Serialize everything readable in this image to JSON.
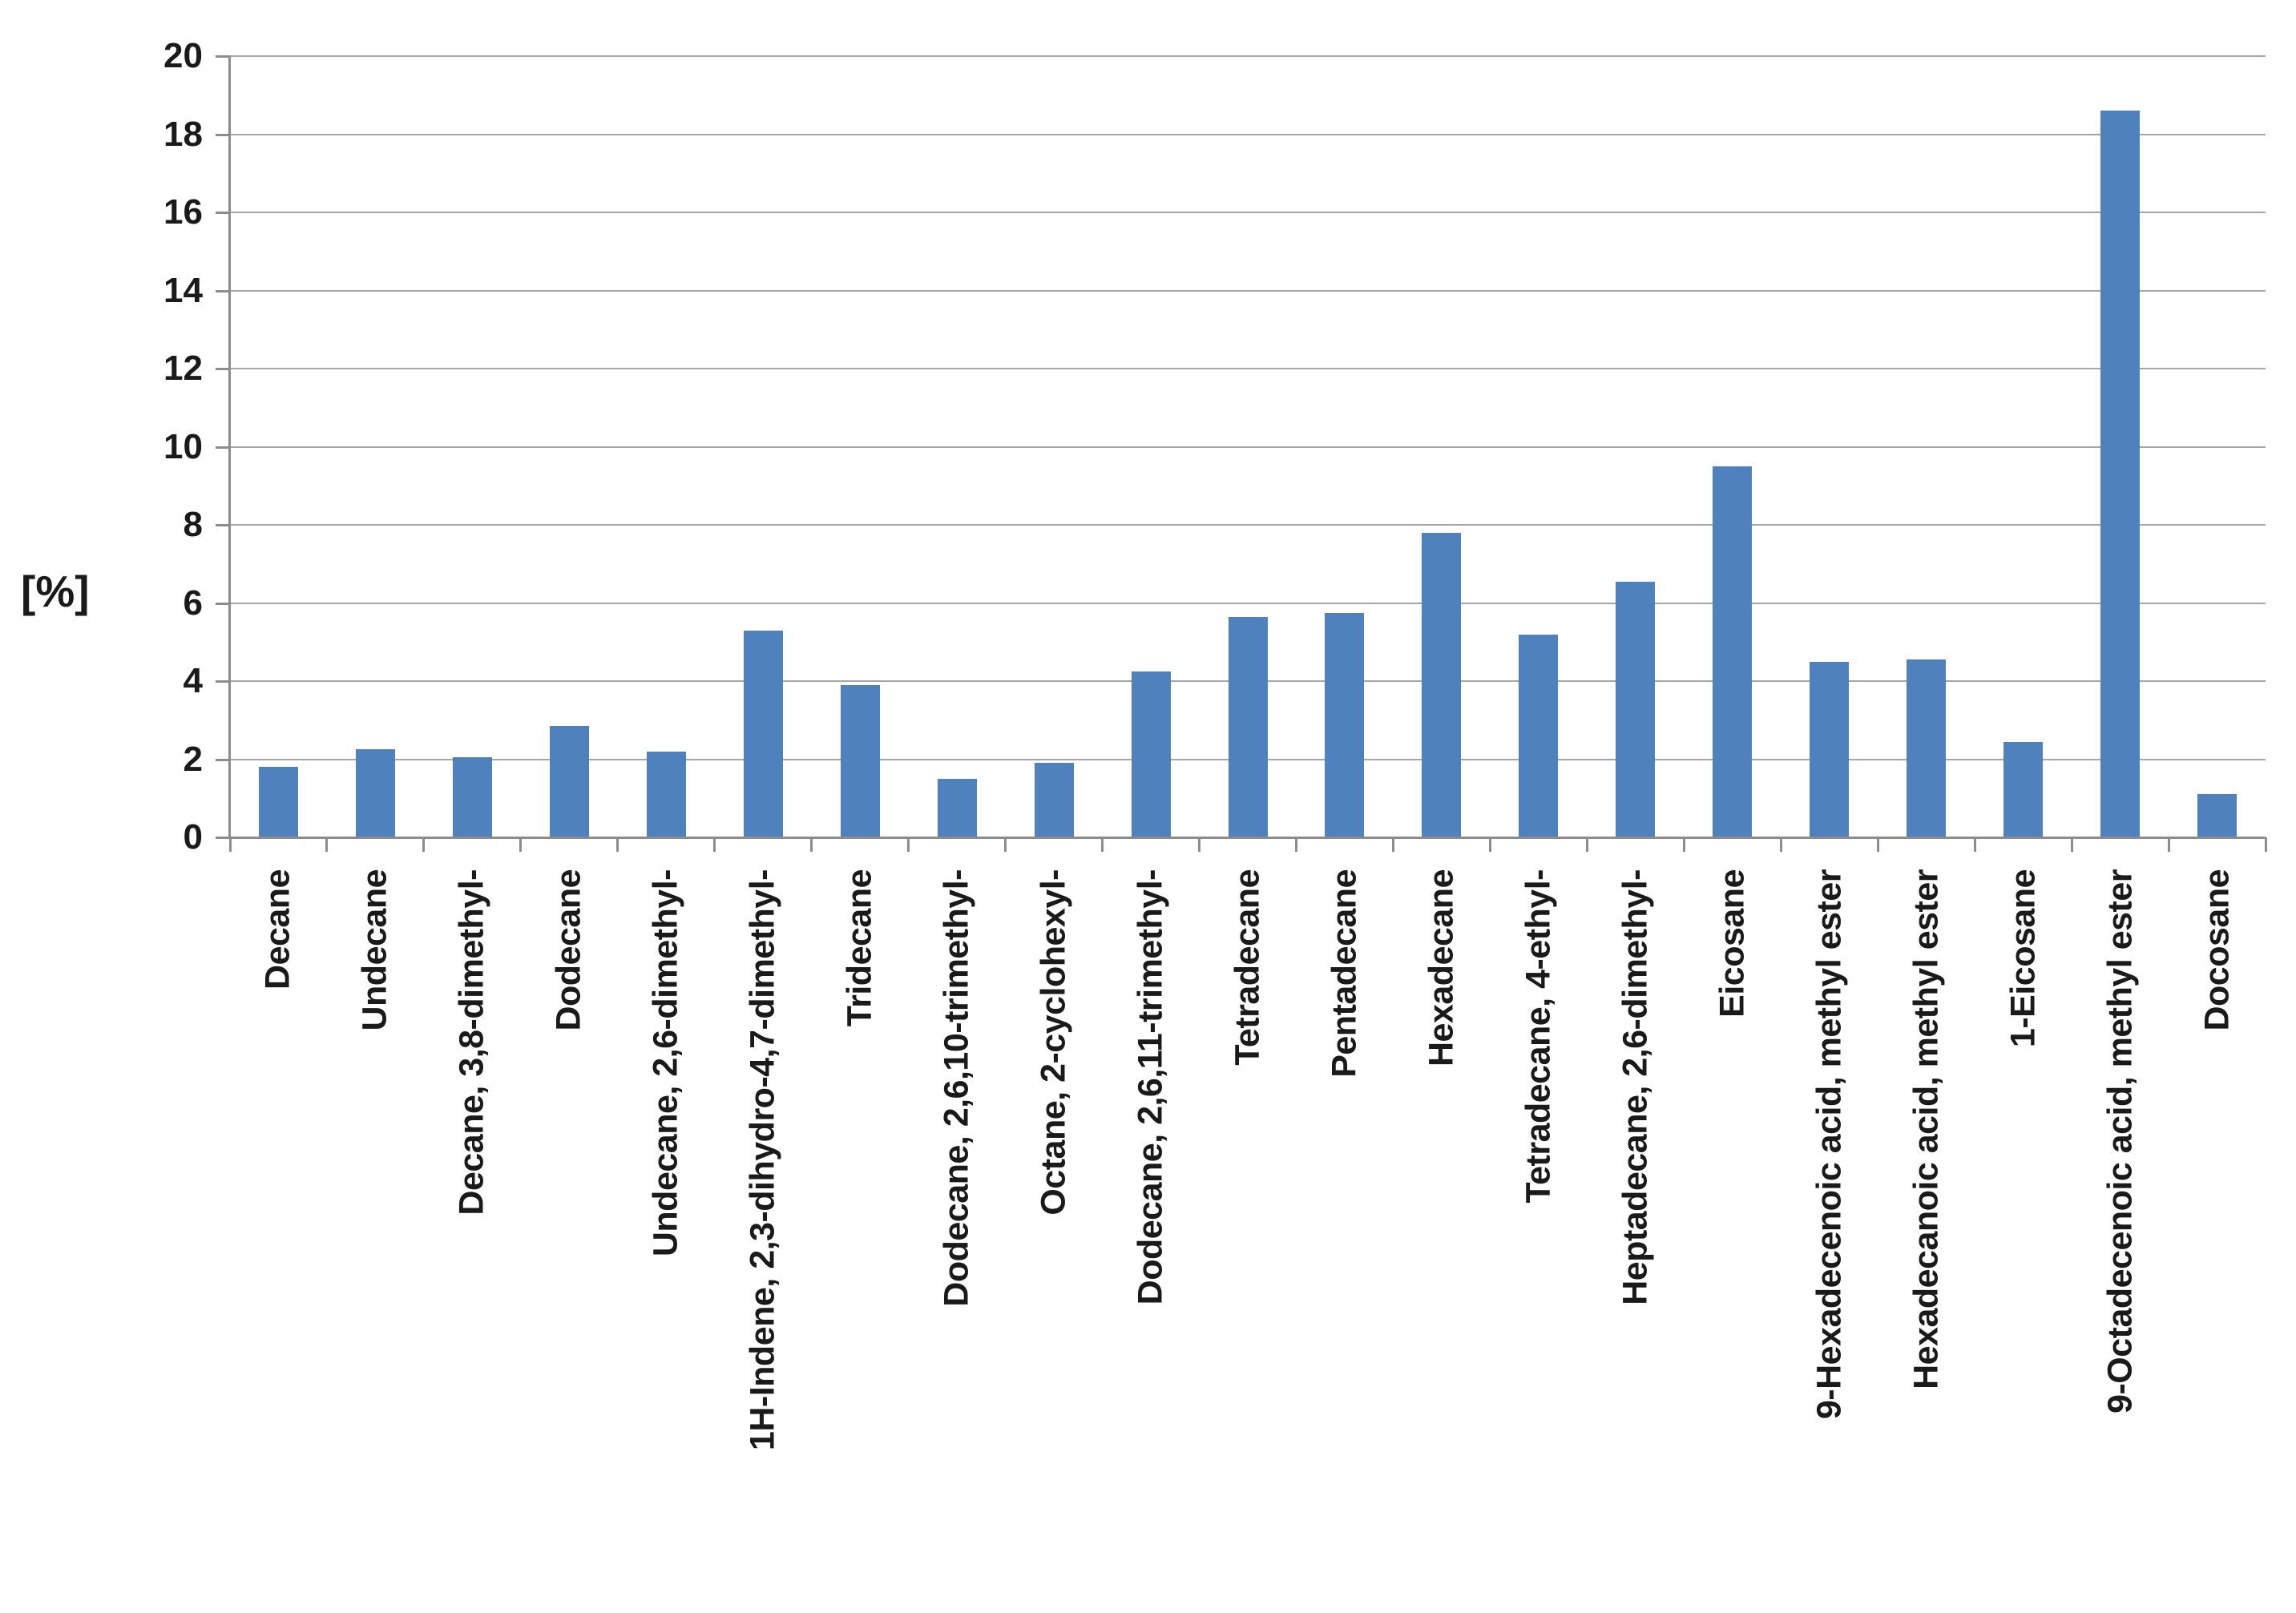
{
  "chart_data": {
    "type": "bar",
    "title": "",
    "ylabel": "[%]",
    "xlabel": "",
    "ylim": [
      0,
      20
    ],
    "ytick_step": 2,
    "ytick_labels": [
      "0",
      "2",
      "4",
      "6",
      "8",
      "10",
      "12",
      "14",
      "16",
      "18",
      "20"
    ],
    "grid": true,
    "legend": "none",
    "categories": [
      "Decane",
      "Undecane",
      "Decane, 3,8-dimethyl-",
      "Dodecane",
      "Undecane, 2,6-dimethyl-",
      "1H-Indene, 2,3-dihydro-4,7-dimethyl-",
      "Tridecane",
      "Dodecane, 2,6,10-trimethyl-",
      "Octane, 2-cyclohexyl-",
      "Dodecane, 2,6,11-trimethyl-",
      "Tetradecane",
      "Pentadecane",
      "Hexadecane",
      "Tetradecane, 4-ethyl-",
      "Heptadecane, 2,6-dimethyl-",
      "Eicosane",
      "9-Hexadecenoic acid, methyl ester",
      "Hexadecanoic acid, methyl ester",
      "1-Eicosane",
      "9-Octadecenoic acid, methyl ester",
      "Docosane"
    ],
    "values": [
      1.8,
      2.25,
      2.05,
      2.85,
      2.2,
      5.3,
      3.9,
      1.5,
      1.9,
      4.25,
      5.65,
      5.75,
      7.8,
      5.2,
      6.55,
      9.5,
      4.5,
      4.55,
      2.45,
      18.6,
      1.1
    ],
    "bar_color": "#4f81bd",
    "gridline_color": "#a6a6a6",
    "axis_color": "#8c8c8c",
    "text_color": "#1a1a1a"
  }
}
